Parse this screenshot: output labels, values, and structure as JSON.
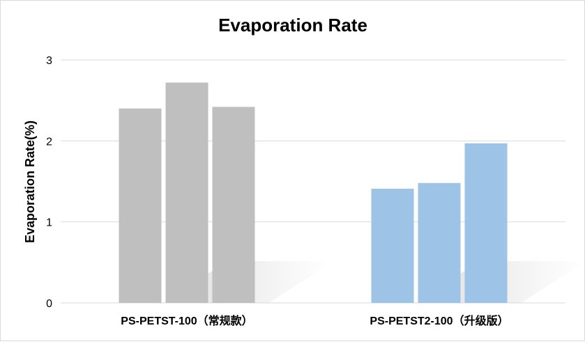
{
  "chart_data": {
    "type": "bar",
    "title": "Evaporation Rate",
    "ylabel": "Evaporation Rate(%)",
    "xlabel": "",
    "ylim": [
      0,
      3
    ],
    "yticks": [
      0,
      1,
      2,
      3
    ],
    "grid": true,
    "legend": "none",
    "groups": [
      {
        "label": "PS-PETST-100（常规款）",
        "color": "#bfbfbf",
        "values": [
          2.4,
          2.72,
          2.42
        ]
      },
      {
        "label": "PS-PETST2-100（升级版）",
        "color": "#9dc3e6",
        "values": [
          1.41,
          1.48,
          1.97
        ]
      }
    ]
  }
}
